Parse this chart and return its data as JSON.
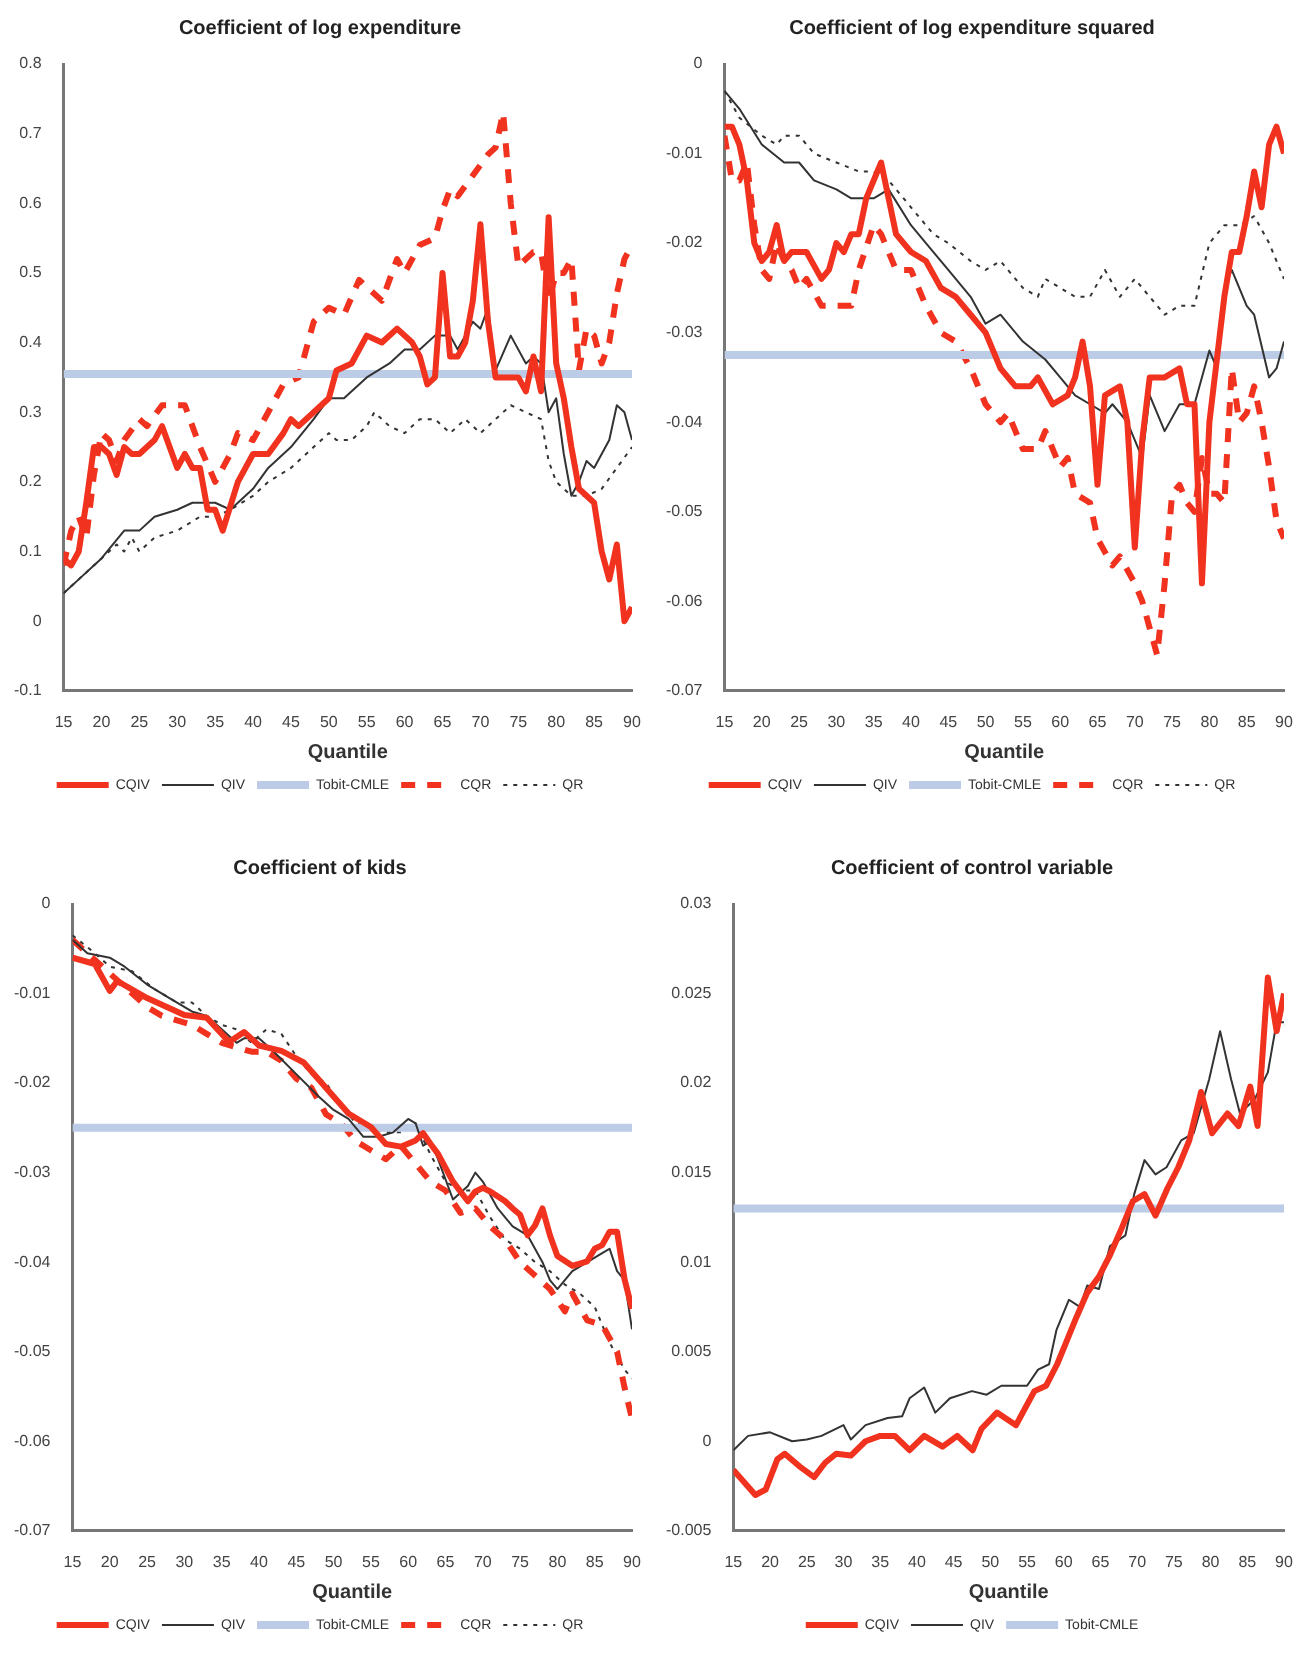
{
  "chart_data": [
    {
      "type": "line",
      "title": "Coefficient of log expenditure",
      "xlabel": "Quantile",
      "xlim": [
        15,
        90
      ],
      "xticks": [
        15,
        20,
        25,
        30,
        35,
        40,
        45,
        50,
        55,
        60,
        65,
        70,
        75,
        80,
        85,
        90
      ],
      "ylim": [
        -0.1,
        0.8
      ],
      "yticks": [
        -0.1,
        0,
        0.1,
        0.2,
        0.3,
        0.4,
        0.5,
        0.6,
        0.7,
        0.8
      ],
      "grid": false,
      "legend": "bottom",
      "marker": "none",
      "series": [
        {
          "name": "CQIV",
          "color": "#f0321e",
          "line_style": "solid",
          "x": [
            15,
            16,
            17,
            18,
            19,
            20,
            21,
            22,
            23,
            24,
            25,
            27,
            28,
            30,
            31,
            32,
            33,
            34,
            35,
            36,
            38,
            40,
            42,
            44,
            45,
            46,
            48,
            50,
            51,
            53,
            55,
            57,
            59,
            61,
            62,
            63,
            64,
            65,
            66,
            67,
            68,
            69,
            70,
            71,
            72,
            74,
            75,
            76,
            77,
            78,
            79,
            80,
            81,
            82,
            83,
            84,
            85,
            86,
            87,
            88,
            89,
            90
          ],
          "values": [
            0.09,
            0.08,
            0.1,
            0.17,
            0.25,
            0.25,
            0.24,
            0.21,
            0.25,
            0.24,
            0.24,
            0.26,
            0.28,
            0.22,
            0.24,
            0.22,
            0.22,
            0.16,
            0.16,
            0.13,
            0.2,
            0.24,
            0.24,
            0.27,
            0.29,
            0.28,
            0.3,
            0.32,
            0.36,
            0.37,
            0.41,
            0.4,
            0.42,
            0.4,
            0.38,
            0.34,
            0.35,
            0.5,
            0.38,
            0.38,
            0.4,
            0.46,
            0.57,
            0.43,
            0.35,
            0.35,
            0.35,
            0.33,
            0.38,
            0.33,
            0.58,
            0.37,
            0.32,
            0.25,
            0.19,
            0.18,
            0.17,
            0.1,
            0.06,
            0.11,
            0,
            0.02
          ]
        },
        {
          "name": "QIV",
          "color": "#333333",
          "line_style": "solid",
          "x": [
            15,
            17,
            20,
            23,
            25,
            27,
            30,
            32,
            35,
            37,
            40,
            42,
            45,
            48,
            50,
            52,
            55,
            58,
            60,
            62,
            64,
            66,
            67,
            69,
            70,
            71,
            72,
            74,
            76,
            77,
            78,
            79,
            80,
            81,
            82,
            83,
            84,
            85,
            86,
            87,
            88,
            89,
            90
          ],
          "values": [
            0.04,
            0.06,
            0.09,
            0.13,
            0.13,
            0.15,
            0.16,
            0.17,
            0.17,
            0.16,
            0.19,
            0.22,
            0.25,
            0.29,
            0.32,
            0.32,
            0.35,
            0.37,
            0.39,
            0.39,
            0.41,
            0.41,
            0.39,
            0.43,
            0.42,
            0.45,
            0.36,
            0.41,
            0.37,
            0.38,
            0.37,
            0.3,
            0.32,
            0.24,
            0.18,
            0.2,
            0.23,
            0.22,
            0.24,
            0.26,
            0.31,
            0.3,
            0.26
          ]
        },
        {
          "name": "Tobit-CMLE",
          "color": "#bccbe6",
          "line_style": "solid",
          "x": [
            15,
            90
          ],
          "values": [
            0.355,
            0.355
          ]
        },
        {
          "name": "CQR",
          "color": "#f0321e",
          "line_style": "dashed",
          "x": [
            15,
            16,
            17,
            18,
            19,
            20,
            21,
            22,
            23,
            25,
            26,
            28,
            30,
            31,
            33,
            35,
            37,
            38,
            40,
            42,
            44,
            46,
            48,
            50,
            52,
            54,
            55,
            57,
            59,
            60,
            62,
            64,
            65,
            66,
            67,
            69,
            71,
            72,
            73,
            74,
            75,
            77,
            78,
            79,
            80,
            81,
            82,
            83,
            84,
            85,
            86,
            87,
            88,
            89,
            90
          ],
          "values": [
            0.08,
            0.13,
            0.15,
            0.12,
            0.21,
            0.27,
            0.26,
            0.23,
            0.26,
            0.29,
            0.28,
            0.31,
            0.31,
            0.31,
            0.25,
            0.2,
            0.24,
            0.27,
            0.26,
            0.3,
            0.34,
            0.35,
            0.43,
            0.45,
            0.44,
            0.49,
            0.48,
            0.46,
            0.52,
            0.5,
            0.54,
            0.55,
            0.59,
            0.62,
            0.61,
            0.64,
            0.67,
            0.68,
            0.73,
            0.6,
            0.51,
            0.53,
            0.53,
            0.46,
            0.5,
            0.5,
            0.52,
            0.36,
            0.42,
            0.41,
            0.37,
            0.4,
            0.47,
            0.52,
            0.54
          ]
        },
        {
          "name": "QR",
          "color": "#333333",
          "line_style": "dotted",
          "x": [
            15,
            17,
            20,
            22,
            23,
            24,
            25,
            27,
            30,
            33,
            35,
            37,
            40,
            42,
            45,
            48,
            50,
            51,
            53,
            55,
            56,
            58,
            60,
            62,
            64,
            66,
            68,
            70,
            72,
            74,
            76,
            78,
            79,
            80,
            82,
            84,
            86,
            88,
            90
          ],
          "values": [
            0.04,
            0.06,
            0.09,
            0.11,
            0.1,
            0.12,
            0.1,
            0.12,
            0.13,
            0.15,
            0.15,
            0.16,
            0.18,
            0.2,
            0.22,
            0.25,
            0.27,
            0.26,
            0.26,
            0.28,
            0.3,
            0.28,
            0.27,
            0.29,
            0.29,
            0.27,
            0.29,
            0.27,
            0.29,
            0.31,
            0.3,
            0.29,
            0.23,
            0.2,
            0.18,
            0.18,
            0.19,
            0.22,
            0.25
          ]
        }
      ]
    },
    {
      "type": "line",
      "title": "Coefficient of log expenditure squared",
      "xlabel": "Quantile",
      "xlim": [
        15,
        90
      ],
      "xticks": [
        15,
        20,
        25,
        30,
        35,
        40,
        45,
        50,
        55,
        60,
        65,
        70,
        75,
        80,
        85,
        90
      ],
      "ylim": [
        -0.07,
        0
      ],
      "yticks": [
        -0.07,
        -0.06,
        -0.05,
        -0.04,
        -0.03,
        -0.02,
        -0.01,
        0
      ],
      "grid": false,
      "legend": "bottom",
      "marker": "none",
      "series": [
        {
          "name": "CQIV",
          "color": "#f0321e",
          "line_style": "solid",
          "x": [
            15,
            16,
            17,
            18,
            19,
            20,
            21,
            22,
            23,
            24,
            26,
            28,
            29,
            30,
            31,
            32,
            33,
            34,
            36,
            37,
            38,
            40,
            42,
            44,
            46,
            48,
            50,
            52,
            54,
            56,
            57,
            59,
            61,
            62,
            63,
            64,
            65,
            66,
            68,
            69,
            70,
            71,
            72,
            74,
            76,
            77,
            78,
            79,
            80,
            81,
            82,
            83,
            84,
            85,
            86,
            87,
            88,
            89,
            90
          ],
          "values": [
            -0.007,
            -0.007,
            -0.009,
            -0.013,
            -0.02,
            -0.022,
            -0.021,
            -0.018,
            -0.022,
            -0.021,
            -0.021,
            -0.024,
            -0.023,
            -0.02,
            -0.021,
            -0.019,
            -0.019,
            -0.015,
            -0.011,
            -0.015,
            -0.019,
            -0.021,
            -0.022,
            -0.025,
            -0.026,
            -0.028,
            -0.03,
            -0.034,
            -0.036,
            -0.036,
            -0.035,
            -0.038,
            -0.037,
            -0.035,
            -0.031,
            -0.036,
            -0.047,
            -0.037,
            -0.036,
            -0.04,
            -0.054,
            -0.042,
            -0.035,
            -0.035,
            -0.034,
            -0.038,
            -0.038,
            -0.058,
            -0.04,
            -0.033,
            -0.026,
            -0.021,
            -0.021,
            -0.017,
            -0.012,
            -0.016,
            -0.009,
            -0.007,
            -0.01
          ]
        },
        {
          "name": "QIV",
          "color": "#333333",
          "line_style": "solid",
          "x": [
            15,
            17,
            20,
            23,
            25,
            27,
            30,
            32,
            35,
            37,
            40,
            42,
            45,
            48,
            50,
            52,
            55,
            58,
            60,
            62,
            64,
            66,
            67,
            69,
            70,
            71,
            72,
            74,
            76,
            78,
            80,
            81,
            82,
            83,
            85,
            86,
            88,
            89,
            90
          ],
          "values": [
            -0.003,
            -0.005,
            -0.009,
            -0.011,
            -0.011,
            -0.013,
            -0.014,
            -0.015,
            -0.015,
            -0.014,
            -0.018,
            -0.02,
            -0.023,
            -0.026,
            -0.029,
            -0.028,
            -0.031,
            -0.033,
            -0.035,
            -0.037,
            -0.038,
            -0.039,
            -0.038,
            -0.04,
            -0.042,
            -0.044,
            -0.037,
            -0.041,
            -0.038,
            -0.038,
            -0.032,
            -0.034,
            -0.025,
            -0.023,
            -0.027,
            -0.028,
            -0.035,
            -0.034,
            -0.031
          ]
        },
        {
          "name": "Tobit-CMLE",
          "color": "#bccbe6",
          "line_style": "solid",
          "x": [
            15,
            90
          ],
          "values": [
            -0.0325,
            -0.0325
          ]
        },
        {
          "name": "CQR",
          "color": "#f0321e",
          "line_style": "dashed",
          "x": [
            15,
            16,
            17,
            18,
            19,
            20,
            21,
            22,
            23,
            24,
            25,
            26,
            28,
            30,
            32,
            33,
            35,
            36,
            37,
            38,
            40,
            42,
            44,
            46,
            48,
            50,
            52,
            53,
            55,
            57,
            58,
            60,
            61,
            62,
            64,
            65,
            67,
            68,
            70,
            71,
            72,
            73,
            74,
            75,
            76,
            77,
            78,
            79,
            80,
            81,
            82,
            83,
            84,
            85,
            86,
            87,
            88,
            89,
            90
          ],
          "values": [
            -0.008,
            -0.013,
            -0.013,
            -0.011,
            -0.018,
            -0.023,
            -0.024,
            -0.02,
            -0.022,
            -0.023,
            -0.025,
            -0.024,
            -0.027,
            -0.027,
            -0.027,
            -0.023,
            -0.018,
            -0.019,
            -0.021,
            -0.023,
            -0.023,
            -0.027,
            -0.03,
            -0.031,
            -0.034,
            -0.038,
            -0.04,
            -0.039,
            -0.043,
            -0.043,
            -0.041,
            -0.045,
            -0.044,
            -0.048,
            -0.049,
            -0.053,
            -0.056,
            -0.055,
            -0.058,
            -0.06,
            -0.063,
            -0.066,
            -0.058,
            -0.048,
            -0.047,
            -0.049,
            -0.05,
            -0.044,
            -0.048,
            -0.048,
            -0.049,
            -0.034,
            -0.04,
            -0.039,
            -0.036,
            -0.04,
            -0.045,
            -0.051,
            -0.053
          ]
        },
        {
          "name": "QR",
          "color": "#333333",
          "line_style": "dotted",
          "x": [
            15,
            17,
            20,
            22,
            23,
            25,
            27,
            30,
            33,
            35,
            37,
            40,
            43,
            45,
            48,
            50,
            52,
            55,
            57,
            58,
            60,
            62,
            64,
            66,
            68,
            70,
            72,
            74,
            76,
            78,
            80,
            82,
            84,
            86,
            88,
            90
          ],
          "values": [
            -0.003,
            -0.006,
            -0.008,
            -0.009,
            -0.008,
            -0.008,
            -0.01,
            -0.011,
            -0.012,
            -0.012,
            -0.013,
            -0.016,
            -0.019,
            -0.02,
            -0.022,
            -0.023,
            -0.022,
            -0.025,
            -0.026,
            -0.024,
            -0.025,
            -0.026,
            -0.026,
            -0.023,
            -0.026,
            -0.024,
            -0.026,
            -0.028,
            -0.027,
            -0.027,
            -0.02,
            -0.018,
            -0.018,
            -0.017,
            -0.02,
            -0.024
          ]
        }
      ]
    },
    {
      "type": "line",
      "title": "Coefficient of kids",
      "xlabel": "Quantile",
      "xlim": [
        15,
        90
      ],
      "xticks": [
        15,
        20,
        25,
        30,
        35,
        40,
        45,
        50,
        55,
        60,
        65,
        70,
        75,
        80,
        85,
        90
      ],
      "ylim": [
        -0.07,
        0
      ],
      "yticks": [
        -0.07,
        -0.06,
        -0.05,
        -0.04,
        -0.03,
        -0.02,
        -0.01,
        0
      ],
      "grid": false,
      "legend": "bottom",
      "marker": "none",
      "series": [
        {
          "name": "CQIV",
          "color": "#f0321e",
          "line_style": "solid",
          "x": [
            15,
            18,
            20,
            21,
            25,
            30,
            33,
            36,
            38,
            40,
            43,
            46,
            48,
            50,
            52,
            55,
            57,
            59,
            61,
            62,
            63,
            64,
            66,
            68,
            69,
            70,
            71,
            73,
            74,
            75,
            76,
            77,
            78,
            79,
            80,
            82,
            84,
            85,
            86,
            87,
            88,
            89,
            90
          ],
          "values": [
            -0.006,
            -0.0067,
            -0.0097,
            -0.0086,
            -0.0105,
            -0.0124,
            -0.0127,
            -0.0154,
            -0.0143,
            -0.0158,
            -0.0164,
            -0.0177,
            -0.0196,
            -0.0215,
            -0.0234,
            -0.0249,
            -0.0268,
            -0.0271,
            -0.0264,
            -0.0256,
            -0.0268,
            -0.0279,
            -0.031,
            -0.0332,
            -0.0321,
            -0.0317,
            -0.0321,
            -0.0332,
            -0.034,
            -0.0347,
            -0.037,
            -0.0359,
            -0.034,
            -0.037,
            -0.0393,
            -0.0404,
            -0.0399,
            -0.0385,
            -0.0381,
            -0.0366,
            -0.0366,
            -0.0419,
            -0.0452
          ]
        },
        {
          "name": "QIV",
          "color": "#333333",
          "line_style": "solid",
          "x": [
            15,
            17,
            20,
            22,
            25,
            28,
            31,
            33,
            35,
            37,
            38,
            40,
            42,
            45,
            48,
            50,
            52,
            54,
            56,
            58,
            60,
            61,
            62,
            63,
            64,
            66,
            68,
            69,
            70,
            72,
            74,
            76,
            78,
            79,
            80,
            81,
            82,
            84,
            86,
            87,
            88,
            89,
            90
          ],
          "values": [
            -0.004,
            -0.0055,
            -0.006,
            -0.007,
            -0.009,
            -0.0105,
            -0.012,
            -0.0125,
            -0.014,
            -0.0155,
            -0.015,
            -0.015,
            -0.0165,
            -0.019,
            -0.0215,
            -0.023,
            -0.024,
            -0.026,
            -0.026,
            -0.0255,
            -0.024,
            -0.0245,
            -0.027,
            -0.0265,
            -0.0285,
            -0.033,
            -0.0315,
            -0.03,
            -0.031,
            -0.034,
            -0.036,
            -0.037,
            -0.04,
            -0.042,
            -0.043,
            -0.042,
            -0.041,
            -0.04,
            -0.039,
            -0.0385,
            -0.041,
            -0.042,
            -0.0475
          ]
        },
        {
          "name": "Tobit-CMLE",
          "color": "#bccbe6",
          "line_style": "solid",
          "x": [
            15,
            90
          ],
          "values": [
            -0.025,
            -0.025
          ]
        },
        {
          "name": "CQR",
          "color": "#f0321e",
          "line_style": "dashed",
          "x": [
            15,
            17,
            19,
            21,
            23,
            25,
            27,
            29,
            31,
            33,
            35,
            37,
            39,
            41,
            43,
            45,
            47,
            49,
            51,
            53,
            55,
            57,
            59,
            61,
            63,
            65,
            67,
            69,
            71,
            73,
            75,
            77,
            79,
            81,
            82,
            84,
            86,
            88,
            89,
            90
          ],
          "values": [
            -0.004,
            -0.0055,
            -0.007,
            -0.0085,
            -0.01,
            -0.0115,
            -0.0125,
            -0.013,
            -0.0135,
            -0.0145,
            -0.0155,
            -0.016,
            -0.0165,
            -0.0165,
            -0.0175,
            -0.0195,
            -0.0205,
            -0.0235,
            -0.0245,
            -0.0265,
            -0.0275,
            -0.0285,
            -0.027,
            -0.029,
            -0.031,
            -0.032,
            -0.0345,
            -0.034,
            -0.036,
            -0.0375,
            -0.04,
            -0.0415,
            -0.043,
            -0.0455,
            -0.0435,
            -0.0465,
            -0.047,
            -0.05,
            -0.054,
            -0.0575
          ]
        },
        {
          "name": "QR",
          "color": "#333333",
          "line_style": "dotted",
          "x": [
            15,
            18,
            20,
            23,
            26,
            29,
            31,
            33,
            35,
            37,
            39,
            41,
            43,
            45,
            47,
            49,
            51,
            53,
            55,
            57,
            59,
            61,
            63,
            65,
            67,
            69,
            71,
            73,
            75,
            77,
            79,
            81,
            83,
            85,
            87,
            89,
            90
          ],
          "values": [
            -0.0035,
            -0.0055,
            -0.007,
            -0.0075,
            -0.0095,
            -0.011,
            -0.011,
            -0.0125,
            -0.0135,
            -0.014,
            -0.0155,
            -0.014,
            -0.0145,
            -0.017,
            -0.019,
            -0.02,
            -0.0225,
            -0.0245,
            -0.025,
            -0.0255,
            -0.0255,
            -0.0245,
            -0.028,
            -0.031,
            -0.032,
            -0.032,
            -0.035,
            -0.0375,
            -0.0385,
            -0.04,
            -0.041,
            -0.0425,
            -0.0435,
            -0.045,
            -0.049,
            -0.052,
            -0.053
          ]
        }
      ]
    },
    {
      "type": "line",
      "title": "Coefficient of control variable",
      "xlabel": "Quantile",
      "xlim": [
        15,
        90
      ],
      "xticks": [
        15,
        20,
        25,
        30,
        35,
        40,
        45,
        50,
        55,
        60,
        65,
        70,
        75,
        80,
        85,
        90
      ],
      "ylim": [
        -0.005,
        0.03
      ],
      "yticks": [
        -0.005,
        0,
        0.005,
        0.01,
        0.015,
        0.02,
        0.025,
        0.03
      ],
      "grid": false,
      "legend": "bottom",
      "marker": "none",
      "series": [
        {
          "name": "CQIV",
          "color": "#f0321e",
          "line_style": "solid",
          "x": [
            15,
            18,
            19.4,
            21,
            22,
            24,
            26,
            27.5,
            29,
            31,
            33,
            35,
            37,
            39,
            41,
            43.5,
            45.5,
            47.6,
            48.8,
            50.9,
            53.5,
            56,
            57.6,
            59.1,
            60.2,
            61.7,
            63.2,
            64.8,
            66.3,
            67.9,
            69.4,
            71,
            72.5,
            74.1,
            75.6,
            77.1,
            78.7,
            80.2,
            82.3,
            83.8,
            85.4,
            86.4,
            87.8,
            89,
            90
          ],
          "values": [
            -0.0016,
            -0.003,
            -0.0027,
            -0.001,
            -0.0007,
            -0.0014,
            -0.002,
            -0.0012,
            -0.0007,
            -0.0008,
            0,
            0.0003,
            0.0003,
            -0.0005,
            0.0003,
            -0.0003,
            0.0003,
            -0.0005,
            0.0007,
            0.0016,
            0.0009,
            0.0028,
            0.0031,
            0.0043,
            0.0054,
            0.0069,
            0.0083,
            0.0092,
            0.0104,
            0.0119,
            0.0134,
            0.0138,
            0.0126,
            0.0141,
            0.0153,
            0.0168,
            0.0195,
            0.0172,
            0.0183,
            0.0176,
            0.0198,
            0.0176,
            0.0259,
            0.0229,
            0.025
          ]
        },
        {
          "name": "QIV",
          "color": "#333333",
          "line_style": "solid",
          "x": [
            15,
            17,
            20,
            23,
            25,
            27,
            30,
            31,
            33,
            36,
            38,
            39,
            41,
            42.5,
            44.5,
            47.5,
            49.5,
            51.5,
            55,
            56.5,
            58,
            59,
            60.7,
            62.2,
            63.2,
            64.8,
            66.3,
            68.4,
            69.6,
            71,
            72.5,
            74,
            76,
            77.7,
            79.8,
            81.3,
            82.8,
            84,
            86,
            87.8,
            89,
            90
          ],
          "values": [
            -0.0005,
            0.0003,
            0.0005,
            0,
            0.0001,
            0.0003,
            0.0009,
            0.0001,
            0.0009,
            0.0013,
            0.0014,
            0.0024,
            0.003,
            0.0016,
            0.0024,
            0.0028,
            0.0026,
            0.0031,
            0.0031,
            0.004,
            0.0043,
            0.0062,
            0.0079,
            0.0075,
            0.0087,
            0.0085,
            0.0109,
            0.0115,
            0.0138,
            0.0157,
            0.0149,
            0.0153,
            0.0168,
            0.0172,
            0.0202,
            0.0229,
            0.0202,
            0.0183,
            0.0191,
            0.0206,
            0.0234,
            0.0234
          ]
        },
        {
          "name": "Tobit-CMLE",
          "color": "#bccbe6",
          "line_style": "solid",
          "x": [
            15,
            90
          ],
          "values": [
            0.013,
            0.013
          ]
        }
      ]
    }
  ]
}
